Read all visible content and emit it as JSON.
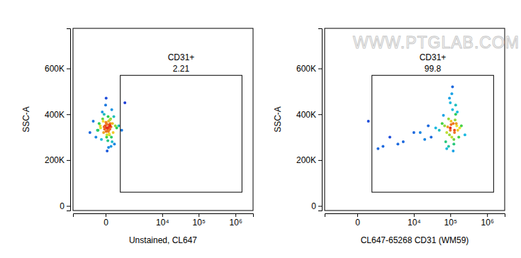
{
  "chart_data": [
    {
      "type": "scatter",
      "xlabel": "Unstained, CL647",
      "ylabel": "SSC-A",
      "log": "x",
      "xlim": [
        -2000,
        3000000
      ],
      "xticks": [
        0,
        {
          "value": 10000,
          "label": "10⁴"
        },
        {
          "value": 100000,
          "label": "10⁵"
        },
        {
          "value": 1000000,
          "label": "10⁶"
        }
      ],
      "ylim": [
        -20000,
        775000
      ],
      "yticks": [
        0,
        {
          "value": 200000,
          "label": "200K"
        },
        {
          "value": 400000,
          "label": "400K"
        },
        {
          "value": 600000,
          "label": "600K"
        }
      ],
      "gate": {
        "name": "CD31+",
        "percent": 2.21,
        "x": [
          450,
          1500000
        ],
        "y": [
          60000,
          570000
        ]
      },
      "x": [
        -120,
        50,
        180,
        -60,
        20,
        100,
        -200,
        150,
        0,
        80,
        -30,
        60,
        120,
        -90,
        30,
        200,
        -150,
        10,
        90,
        -10,
        40,
        130,
        -70,
        70,
        250,
        -250,
        5,
        110,
        -40,
        160,
        300,
        -350,
        25,
        65,
        -5,
        85,
        140,
        -110,
        45,
        15,
        -20,
        55,
        95,
        35,
        -50,
        75,
        220,
        -180,
        0,
        60,
        380,
        520,
        700,
        -500,
        30,
        10,
        50,
        -30,
        120,
        90
      ],
      "values": [
        350000,
        340000,
        320000,
        380000,
        300000,
        360000,
        330000,
        280000,
        340000,
        310000,
        400000,
        370000,
        345000,
        290000,
        355000,
        390000,
        360000,
        325000,
        335000,
        350000,
        330000,
        300000,
        410000,
        345000,
        350000,
        300000,
        365000,
        380000,
        320000,
        360000,
        340000,
        370000,
        310000,
        330000,
        345000,
        355000,
        420000,
        340000,
        285000,
        360000,
        335000,
        325000,
        350000,
        340000,
        370000,
        315000,
        270000,
        330000,
        440000,
        255000,
        350000,
        330000,
        450000,
        320000,
        240000,
        470000,
        390000,
        345000,
        260000,
        375000
      ]
    },
    {
      "type": "scatter",
      "xlabel": "CL647-65268 CD31 (WM59)",
      "ylabel": "SSC-A",
      "watermark": "WWW.PTGLAB.COM",
      "log": "x",
      "xlim": [
        -2000,
        3000000
      ],
      "xticks": [
        0,
        {
          "value": 10000,
          "label": "10⁴"
        },
        {
          "value": 100000,
          "label": "10⁵"
        },
        {
          "value": 1000000,
          "label": "10⁶"
        }
      ],
      "ylim": [
        -20000,
        775000
      ],
      "yticks": [
        0,
        {
          "value": 200000,
          "label": "200K"
        },
        {
          "value": 400000,
          "label": "400K"
        },
        {
          "value": 600000,
          "label": "600K"
        }
      ],
      "gate": {
        "name": "CD31+",
        "percent": 99.8,
        "x": [
          450,
          1500000
        ],
        "y": [
          60000,
          570000
        ]
      },
      "x": [
        100000,
        120000,
        80000,
        150000,
        90000,
        110000,
        130000,
        70000,
        140000,
        95000,
        105000,
        125000,
        85000,
        160000,
        60000,
        180000,
        115000,
        75000,
        135000,
        100000,
        90000,
        200000,
        50000,
        170000,
        110000,
        120000,
        65000,
        145000,
        100000,
        130000,
        40000,
        250000,
        95000,
        80000,
        155000,
        105000,
        30000,
        115000,
        125000,
        140000,
        20000,
        10000,
        5000,
        2000,
        800,
        300,
        15000,
        25000,
        3500,
        1200
      ],
      "values": [
        340000,
        360000,
        320000,
        350000,
        380000,
        300000,
        330000,
        350000,
        400000,
        310000,
        370000,
        290000,
        345000,
        330000,
        360000,
        340000,
        420000,
        280000,
        375000,
        450000,
        260000,
        350000,
        330000,
        300000,
        490000,
        240000,
        395000,
        360000,
        330000,
        320000,
        340000,
        310000,
        470000,
        250000,
        410000,
        355000,
        300000,
        520000,
        270000,
        440000,
        290000,
        320000,
        280000,
        300000,
        250000,
        370000,
        320000,
        350000,
        270000,
        260000
      ]
    }
  ]
}
